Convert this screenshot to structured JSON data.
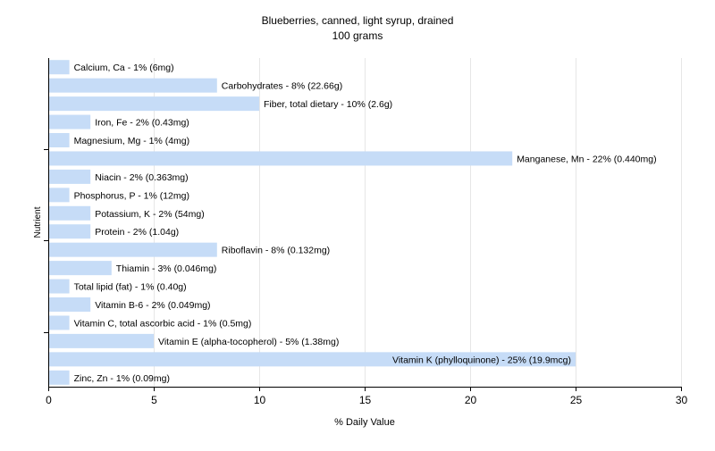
{
  "chart_data": {
    "type": "bar",
    "orientation": "horizontal",
    "title": "Blueberries, canned, light syrup, drained",
    "subtitle": "100 grams",
    "xlabel": "% Daily Value",
    "ylabel": "Nutrient",
    "xlim": [
      0,
      30
    ],
    "x_ticks": [
      0,
      5,
      10,
      15,
      20,
      25,
      30
    ],
    "grid": true,
    "bar_color": "#c6dcf7",
    "grid_color": "#e6e6e6",
    "axis_color": "#000000",
    "categories": [
      "Calcium, Ca",
      "Carbohydrates",
      "Fiber, total dietary",
      "Iron, Fe",
      "Magnesium, Mg",
      "Manganese, Mn",
      "Niacin",
      "Phosphorus, P",
      "Potassium, K",
      "Protein",
      "Riboflavin",
      "Thiamin",
      "Total lipid (fat)",
      "Vitamin B-6",
      "Vitamin C, total ascorbic acid",
      "Vitamin E (alpha-tocopherol)",
      "Vitamin K (phylloquinone)",
      "Zinc, Zn"
    ],
    "values": [
      1,
      8,
      10,
      2,
      1,
      22,
      2,
      1,
      2,
      2,
      8,
      3,
      1,
      2,
      1,
      5,
      25,
      1
    ],
    "bar_labels": [
      "Calcium, Ca - 1% (6mg)",
      "Carbohydrates - 8% (22.66g)",
      "Fiber, total dietary - 10% (2.6g)",
      "Iron, Fe - 2% (0.43mg)",
      "Magnesium, Mg - 1% (4mg)",
      "Manganese, Mn - 22% (0.440mg)",
      "Niacin - 2% (0.363mg)",
      "Phosphorus, P - 1% (12mg)",
      "Potassium, K - 2% (54mg)",
      "Protein - 2% (1.04g)",
      "Riboflavin - 8% (0.132mg)",
      "Thiamin - 3% (0.046mg)",
      "Total lipid (fat) - 1% (0.40g)",
      "Vitamin B-6 - 2% (0.049mg)",
      "Vitamin C, total ascorbic acid - 1% (0.5mg)",
      "Vitamin E (alpha-tocopherol) - 5% (1.38mg)",
      "Vitamin K (phylloquinone) - 25% (19.9mcg)",
      "Zinc, Zn - 1% (0.09mg)"
    ]
  }
}
